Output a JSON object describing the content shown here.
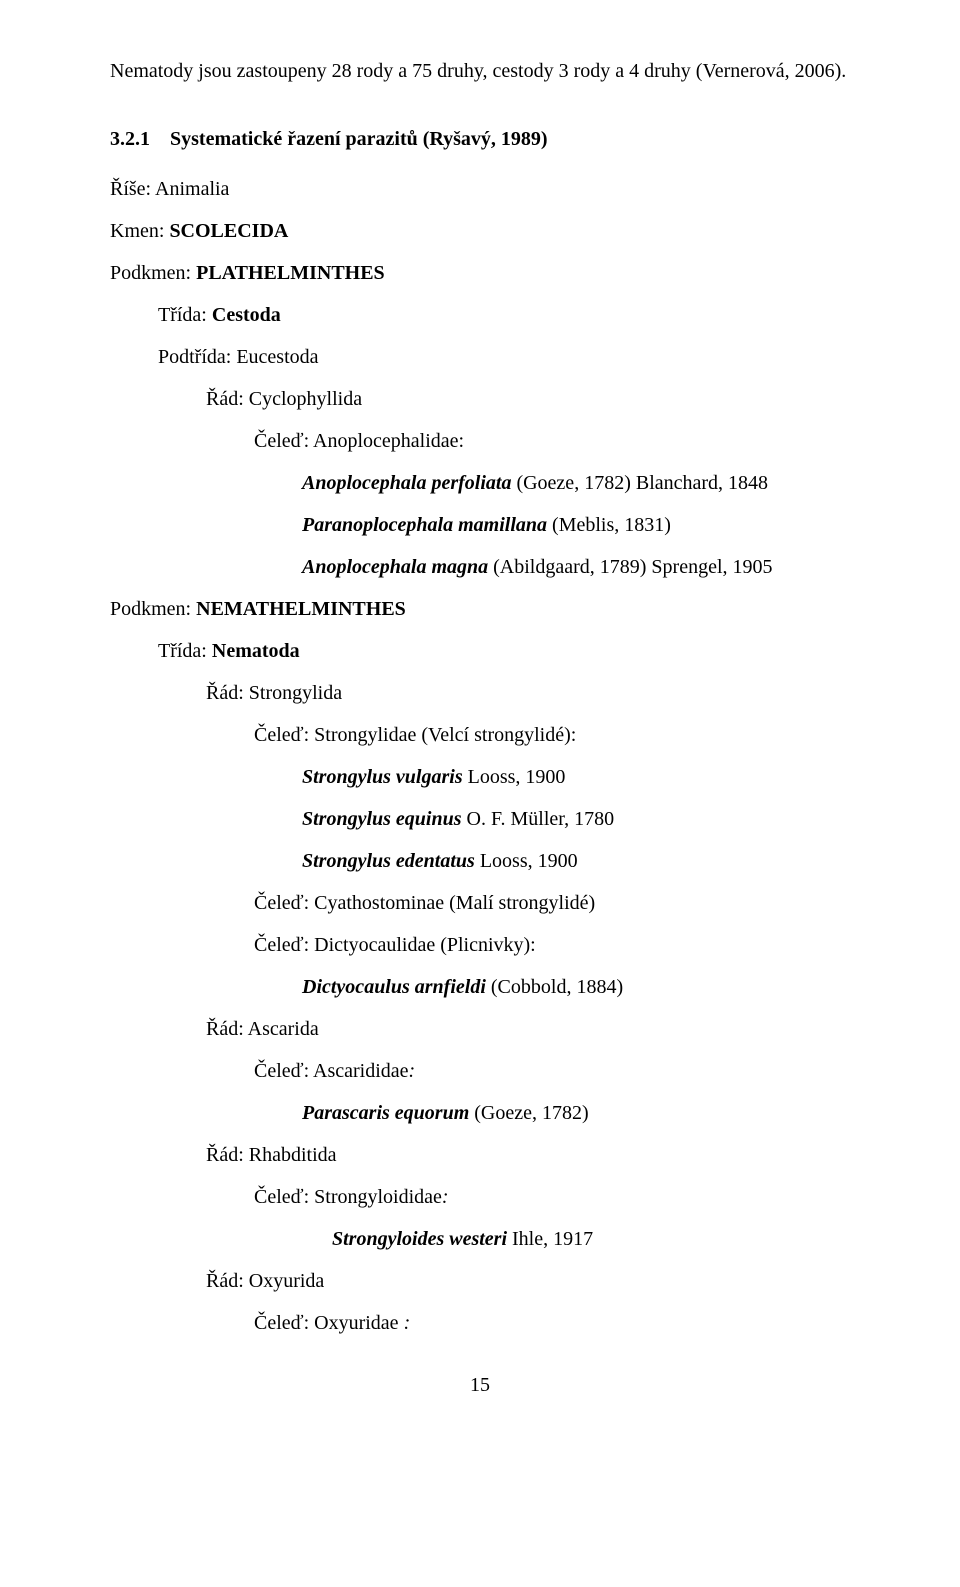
{
  "intro": "Nematody jsou zastoupeny 28 rody a 75 druhy, cestody 3 rody a 4 druhy (Vernerová, 2006).",
  "section": {
    "number": "3.2.1",
    "title": "Systematické řazení parazitů (Ryšavý, 1989)"
  },
  "page_number": "15",
  "taxonomy": [
    {
      "indent": 0,
      "parts": [
        {
          "text": "Říše: Animalia",
          "bold": false,
          "italic": false
        }
      ]
    },
    {
      "indent": 0,
      "parts": [
        {
          "text": "Kmen: ",
          "bold": false,
          "italic": false
        },
        {
          "text": "SCOLECIDA",
          "bold": true,
          "italic": false
        }
      ]
    },
    {
      "indent": 0,
      "parts": [
        {
          "text": "Podkmen: ",
          "bold": false,
          "italic": false
        },
        {
          "text": "PLATHELMINTHES",
          "bold": true,
          "italic": false
        }
      ]
    },
    {
      "indent": 1,
      "parts": [
        {
          "text": "Třída: ",
          "bold": false,
          "italic": false
        },
        {
          "text": "Cestoda",
          "bold": true,
          "italic": false
        }
      ]
    },
    {
      "indent": 1,
      "parts": [
        {
          "text": "Podtřída: Eucestoda",
          "bold": false,
          "italic": false
        }
      ]
    },
    {
      "indent": 2,
      "parts": [
        {
          "text": "Řád: Cyclophyllida",
          "bold": false,
          "italic": false
        }
      ]
    },
    {
      "indent": 3,
      "parts": [
        {
          "text": "Čeleď: Anoplocephalidae:",
          "bold": false,
          "italic": false
        }
      ]
    },
    {
      "indent": 4,
      "parts": [
        {
          "text": "Anoplocephala perfoliata ",
          "bold": true,
          "italic": true
        },
        {
          "text": "(Goeze, 1782) Blanchard, 1848",
          "bold": false,
          "italic": false
        }
      ]
    },
    {
      "indent": 4,
      "parts": [
        {
          "text": "Paranoplocephala mamillana  ",
          "bold": true,
          "italic": true
        },
        {
          "text": "(Meblis, 1831)",
          "bold": false,
          "italic": false
        }
      ]
    },
    {
      "indent": 4,
      "parts": [
        {
          "text": "Anoplocephala magna ",
          "bold": true,
          "italic": true
        },
        {
          "text": "(Abildgaard, 1789) Sprengel, 1905",
          "bold": false,
          "italic": false
        }
      ]
    },
    {
      "indent": 0,
      "parts": [
        {
          "text": "Podkmen: ",
          "bold": false,
          "italic": false
        },
        {
          "text": "NEMATHELMINTHES",
          "bold": true,
          "italic": false
        }
      ]
    },
    {
      "indent": 1,
      "parts": [
        {
          "text": "Třída: ",
          "bold": false,
          "italic": false
        },
        {
          "text": "Nematoda",
          "bold": true,
          "italic": false
        }
      ]
    },
    {
      "indent": 2,
      "parts": [
        {
          "text": "Řád: Strongylida",
          "bold": false,
          "italic": false
        }
      ]
    },
    {
      "indent": 3,
      "parts": [
        {
          "text": "Čeleď: Strongylidae (Velcí strongylidé):",
          "bold": false,
          "italic": false
        }
      ]
    },
    {
      "indent": 4,
      "parts": [
        {
          "text": "Strongylus vulgaris ",
          "bold": true,
          "italic": true
        },
        {
          "text": "Looss, 1900",
          "bold": false,
          "italic": false
        }
      ]
    },
    {
      "indent": 4,
      "parts": [
        {
          "text": "Strongylus equinus ",
          "bold": true,
          "italic": true
        },
        {
          "text": "O. F. Müller, 1780",
          "bold": false,
          "italic": false
        }
      ]
    },
    {
      "indent": 4,
      "parts": [
        {
          "text": "Strongylus edentatus ",
          "bold": true,
          "italic": true
        },
        {
          "text": "Looss, 1900",
          "bold": false,
          "italic": false
        }
      ]
    },
    {
      "indent": 3,
      "parts": [
        {
          "text": "Čeleď: Cyathostominae  ",
          "bold": false,
          "italic": false
        },
        {
          "text": "(Malí strongylidé)",
          "bold": false,
          "italic": false
        }
      ]
    },
    {
      "indent": 3,
      "parts": [
        {
          "text": "Čeleď: Dictyocaulidae (Plicnivky):",
          "bold": false,
          "italic": false
        }
      ]
    },
    {
      "indent": 4,
      "parts": [
        {
          "text": "Dictyocaulus arnfieldi ",
          "bold": true,
          "italic": true
        },
        {
          "text": "(Cobbold, 1884)",
          "bold": false,
          "italic": false
        }
      ]
    },
    {
      "indent": 2,
      "parts": [
        {
          "text": "Řád: Ascarida",
          "bold": false,
          "italic": false
        }
      ]
    },
    {
      "indent": 3,
      "parts": [
        {
          "text": "Čeleď: Ascarididae",
          "bold": false,
          "italic": false
        },
        {
          "text": ":",
          "bold": false,
          "italic": true
        }
      ]
    },
    {
      "indent": 4,
      "parts": [
        {
          "text": "Parascaris equorum  ",
          "bold": true,
          "italic": true
        },
        {
          "text": "(Goeze, 1782)",
          "bold": false,
          "italic": false
        }
      ]
    },
    {
      "indent": 2,
      "parts": [
        {
          "text": "Řád: Rhabditida",
          "bold": false,
          "italic": false
        }
      ]
    },
    {
      "indent": 3,
      "parts": [
        {
          "text": "Čeleď: Strongyloididae",
          "bold": false,
          "italic": false
        },
        {
          "text": ":",
          "bold": false,
          "italic": true
        }
      ]
    },
    {
      "indent": 5,
      "parts": [
        {
          "text": "Strongyloides westeri ",
          "bold": true,
          "italic": true
        },
        {
          "text": "Ihle, 1917",
          "bold": false,
          "italic": false
        }
      ]
    },
    {
      "indent": 2,
      "parts": [
        {
          "text": "Řád: Oxyurida",
          "bold": false,
          "italic": false
        }
      ]
    },
    {
      "indent": 3,
      "parts": [
        {
          "text": "Čeleď: Oxyuridae ",
          "bold": false,
          "italic": false
        },
        {
          "text": ":",
          "bold": false,
          "italic": true
        }
      ]
    }
  ]
}
